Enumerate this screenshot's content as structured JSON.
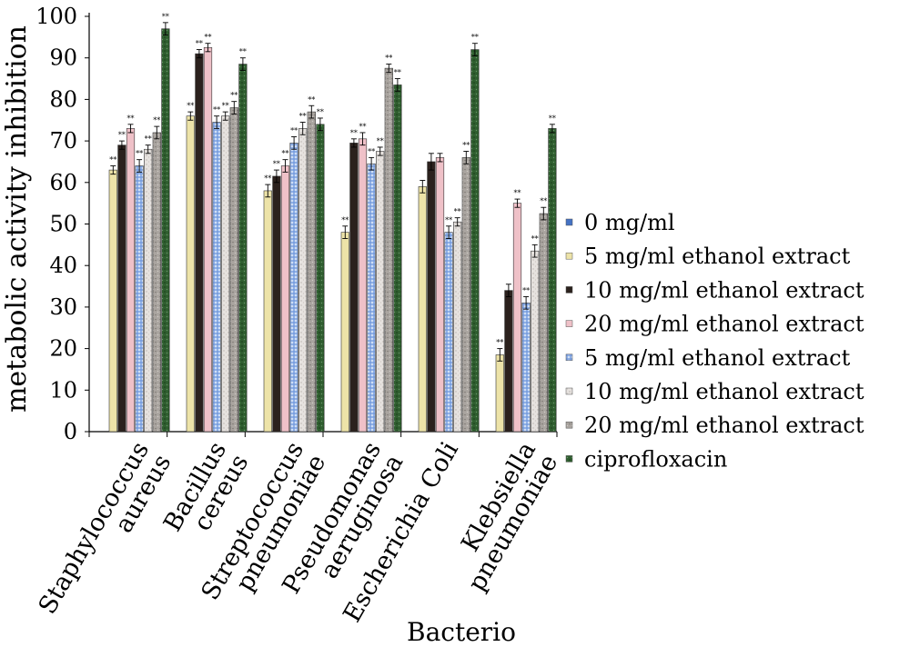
{
  "chart_data": {
    "type": "bar",
    "xlabel": "Bacterio",
    "ylabel": "metabolic activity inhibition",
    "ylim": [
      0,
      100
    ],
    "yticks": [
      0,
      10,
      20,
      30,
      40,
      50,
      60,
      70,
      80,
      90,
      100
    ],
    "grid": false,
    "legend_position": "right",
    "categories": [
      [
        "Staphylococcus",
        "aureus"
      ],
      [
        "Bacillus",
        "cereus"
      ],
      [
        "Streptococcus",
        "pneumoniae"
      ],
      [
        "Pseudomonas",
        "aeruginosa"
      ],
      [
        "Escherichia Coli"
      ],
      [
        "Klebsiella",
        "pneumoniae"
      ]
    ],
    "significance_label": "**",
    "series": [
      {
        "name": "0 mg/ml",
        "color": "#4472c4",
        "pattern": "solid",
        "values": [
          0,
          0,
          0,
          0,
          0,
          0
        ]
      },
      {
        "name": "5 mg/ml ethanol extract",
        "color": "#ede3a8",
        "pattern": "solid",
        "values": [
          63,
          76,
          58,
          48,
          59,
          18.5
        ],
        "errors": [
          1,
          1,
          1.5,
          1.5,
          1.5,
          1.5
        ],
        "significant": [
          true,
          true,
          true,
          true,
          false,
          true
        ]
      },
      {
        "name": "10 mg/ml ethanol extract",
        "color": "#2b211d",
        "pattern": "solid",
        "values": [
          69,
          91,
          61.5,
          69.5,
          65,
          34
        ],
        "errors": [
          1,
          1,
          1.5,
          1,
          2,
          1.5
        ],
        "significant": [
          true,
          true,
          true,
          true,
          false,
          false
        ]
      },
      {
        "name": "20 mg/ml ethanol extract",
        "color": "#efc1c8",
        "pattern": "solid",
        "values": [
          73,
          92.5,
          64,
          70.5,
          66,
          55
        ],
        "errors": [
          1,
          1,
          1.5,
          1.5,
          1,
          1
        ],
        "significant": [
          true,
          true,
          true,
          true,
          false,
          true
        ]
      },
      {
        "name": "5 mg/ml ethanol extract",
        "color": "#8fb0e6",
        "pattern": "dots",
        "values": [
          64,
          74.5,
          69.5,
          64.5,
          48,
          31
        ],
        "errors": [
          1.5,
          1.5,
          1.5,
          1.5,
          1.5,
          1.5
        ],
        "significant": [
          true,
          true,
          true,
          true,
          true,
          true
        ]
      },
      {
        "name": "10 mg/ml ethanol extract",
        "color": "#e6e2df",
        "pattern": "speckle",
        "values": [
          68,
          76,
          73,
          67.5,
          50.5,
          43.5
        ],
        "errors": [
          1,
          1,
          1.5,
          1,
          1,
          1.5
        ],
        "significant": [
          true,
          true,
          true,
          true,
          true,
          true
        ]
      },
      {
        "name": "20 mg/ml ethanol extract",
        "color": "#a9a49f",
        "pattern": "speckle",
        "values": [
          72,
          78,
          77,
          87.5,
          66,
          52.5
        ],
        "errors": [
          1.5,
          1.5,
          1.5,
          1,
          1.5,
          1.5
        ],
        "significant": [
          true,
          true,
          true,
          true,
          true,
          true
        ]
      },
      {
        "name": "ciprofloxacin",
        "color": "#2f5e2f",
        "pattern": "speckle",
        "values": [
          97,
          88.5,
          74,
          83.5,
          92,
          73
        ],
        "errors": [
          1.5,
          1.5,
          1.5,
          1.5,
          1.5,
          1
        ],
        "significant": [
          true,
          true,
          true,
          true,
          true,
          true
        ]
      }
    ]
  }
}
